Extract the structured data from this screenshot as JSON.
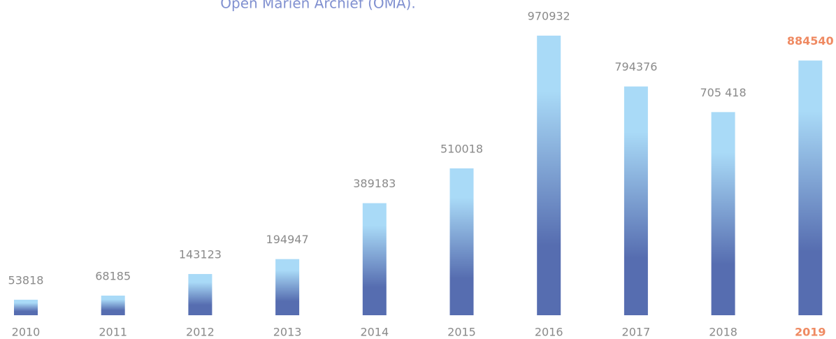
{
  "chart_data": {
    "type": "bar",
    "title": "Open Marien Archief (OMA).",
    "categories": [
      "2010",
      "2011",
      "2012",
      "2013",
      "2014",
      "2015",
      "2016",
      "2017",
      "2018",
      "2019"
    ],
    "values": [
      53818,
      68185,
      143123,
      194947,
      389183,
      510018,
      970932,
      794376,
      705418,
      884540
    ],
    "value_labels": [
      "53818",
      "68185",
      "143123",
      "194947",
      "389183",
      "510018",
      "970932",
      "794376",
      "705 418",
      "884540"
    ],
    "color": {
      "top": "#a9daf7",
      "bottom": "#566db0"
    },
    "highlight": {
      "index": 9,
      "color": "#ef8a62"
    },
    "ylim": [
      0,
      1000000
    ]
  }
}
